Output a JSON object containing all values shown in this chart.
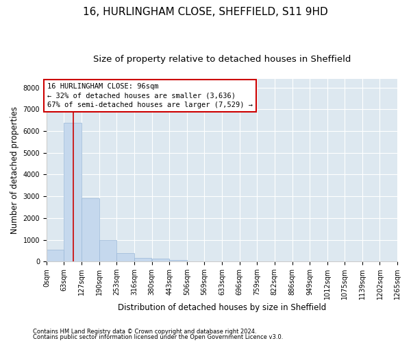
{
  "title": "16, HURLINGHAM CLOSE, SHEFFIELD, S11 9HD",
  "subtitle": "Size of property relative to detached houses in Sheffield",
  "xlabel": "Distribution of detached houses by size in Sheffield",
  "ylabel": "Number of detached properties",
  "footnote1": "Contains HM Land Registry data © Crown copyright and database right 2024.",
  "footnote2": "Contains public sector information licensed under the Open Government Licence v3.0.",
  "property_size": 96,
  "property_line_color": "#cc0000",
  "annotation_line1": "16 HURLINGHAM CLOSE: 96sqm",
  "annotation_line2": "← 32% of detached houses are smaller (3,636)",
  "annotation_line3": "67% of semi-detached houses are larger (7,529) →",
  "bar_color": "#c5d8ed",
  "bar_edge_color": "#9ab8d8",
  "bins": [
    0,
    63,
    127,
    190,
    253,
    316,
    380,
    443,
    506,
    569,
    633,
    696,
    759,
    822,
    886,
    949,
    1012,
    1075,
    1139,
    1202,
    1265
  ],
  "bin_labels": [
    "0sqm",
    "63sqm",
    "127sqm",
    "190sqm",
    "253sqm",
    "316sqm",
    "380sqm",
    "443sqm",
    "506sqm",
    "569sqm",
    "633sqm",
    "696sqm",
    "759sqm",
    "822sqm",
    "886sqm",
    "949sqm",
    "1012sqm",
    "1075sqm",
    "1139sqm",
    "1202sqm",
    "1265sqm"
  ],
  "counts": [
    550,
    6380,
    2900,
    970,
    380,
    165,
    120,
    80,
    10,
    5,
    3,
    2,
    1,
    1,
    1,
    0,
    0,
    0,
    0,
    0
  ],
  "ylim": [
    0,
    8400
  ],
  "yticks": [
    0,
    1000,
    2000,
    3000,
    4000,
    5000,
    6000,
    7000,
    8000
  ],
  "background_color": "#ffffff",
  "plot_bg_color": "#dde8f0",
  "grid_color": "#ffffff",
  "title_fontsize": 11,
  "subtitle_fontsize": 9.5,
  "axis_label_fontsize": 8.5,
  "tick_fontsize": 7,
  "footnote_fontsize": 6
}
